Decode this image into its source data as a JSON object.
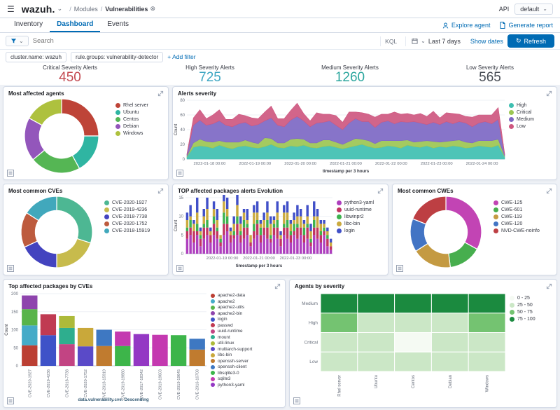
{
  "icons": {
    "hamburger": "☰",
    "caret_down": "⌄",
    "close_circle": "⊗",
    "refresh": "↻",
    "slash": "/"
  },
  "header": {
    "logo": "wazuh.",
    "breadcrumb": {
      "section": "Modules",
      "page": "Vulnerabilities"
    },
    "api_label": "API",
    "api_value": "default",
    "tabs": [
      {
        "label": "Inventory"
      },
      {
        "label": "Dashboard"
      },
      {
        "label": "Events"
      }
    ],
    "actions": {
      "explore_agent": "Explore agent",
      "generate_report": "Generate report"
    }
  },
  "searchbar": {
    "placeholder": "Search",
    "kql": "KQL",
    "time_range": "Last 7 days",
    "show_dates": "Show dates",
    "refresh": "Refresh"
  },
  "filters": {
    "pills": [
      "cluster.name: wazuh",
      "rule.groups: vulnerability-detector"
    ],
    "add_label": "+ Add filter"
  },
  "stats": [
    {
      "label": "Critical Severity Alerts",
      "value": "450",
      "color": "#c34a51"
    },
    {
      "label": "High Severity Alerts",
      "value": "725",
      "color": "#3da6c2"
    },
    {
      "label": "Medium Severity Alerts",
      "value": "1260",
      "color": "#2ca69e"
    },
    {
      "label": "Low Severity Alerts",
      "value": "565",
      "color": "#464b53"
    }
  ],
  "panels": {
    "agents": {
      "title": "Most affected agents"
    },
    "severity": {
      "title": "Alerts severity"
    },
    "cves": {
      "title": "Most common CVEs"
    },
    "evolution": {
      "title": "TOP affected packages alerts Evolution"
    },
    "cwes": {
      "title": "Most common CWEs"
    },
    "packages": {
      "title": "Top affected packages by CVEs"
    },
    "heatmap": {
      "title": "Agents by severity"
    }
  },
  "chart_data": {
    "agents_donut": {
      "type": "pie",
      "labels": [
        "Rhel server",
        "Ubuntu",
        "Centos",
        "Debian",
        "Windows"
      ],
      "values": [
        25,
        17,
        22,
        19,
        17
      ],
      "colors": [
        "#be4438",
        "#2fb5a2",
        "#55b654",
        "#9356bb",
        "#aec13e"
      ]
    },
    "alerts_severity": {
      "type": "area",
      "stacked": true,
      "ylabel": "Count",
      "xlabel": "timestamp per 3 hours",
      "ylim": [
        0,
        80
      ],
      "y_ticks": [
        0,
        20,
        40,
        60,
        80
      ],
      "x_ticks": [
        "2022-01-18 00:00",
        "2022-01-19 00:00",
        "2022-01-20 00:00",
        "2022-01-21 00:00",
        "2022-01-22 00:00",
        "2022-01-23 00:00",
        "2022-01-24 00:00"
      ],
      "series": [
        {
          "name": "High",
          "color": "#3fbfb1",
          "values": [
            3,
            16,
            18,
            17,
            15,
            19,
            16,
            14,
            17,
            18,
            16,
            15,
            17,
            20,
            16,
            15,
            18,
            17,
            19,
            16,
            15,
            17,
            18,
            16,
            14,
            16,
            18,
            20,
            17,
            15,
            16,
            18,
            17,
            15,
            19,
            17,
            16,
            18,
            15,
            17,
            16,
            18,
            17,
            15,
            16,
            18,
            17,
            16,
            19,
            3
          ]
        },
        {
          "name": "Critical",
          "color": "#9cc653",
          "values": [
            1,
            6,
            9,
            7,
            8,
            6,
            7,
            9,
            6,
            8,
            7,
            6,
            12,
            8,
            6,
            7,
            9,
            11,
            8,
            6,
            7,
            9,
            8,
            7,
            6,
            8,
            10,
            7,
            8,
            6,
            9,
            7,
            8,
            10,
            7,
            6,
            8,
            7,
            9,
            6,
            8,
            7,
            9,
            8,
            6,
            7,
            8,
            9,
            8,
            1
          ]
        },
        {
          "name": "Medium",
          "color": "#7d68c4",
          "values": [
            2,
            24,
            26,
            22,
            25,
            27,
            23,
            21,
            25,
            24,
            22,
            26,
            23,
            28,
            24,
            22,
            26,
            30,
            25,
            22,
            27,
            24,
            26,
            23,
            20,
            25,
            27,
            24,
            26,
            22,
            25,
            27,
            23,
            26,
            24,
            28,
            25,
            22,
            26,
            24,
            27,
            23,
            25,
            26,
            22,
            24,
            26,
            23,
            27,
            2
          ]
        },
        {
          "name": "Low",
          "color": "#ce5880",
          "values": [
            1,
            10,
            14,
            9,
            12,
            15,
            8,
            10,
            13,
            9,
            11,
            8,
            12,
            16,
            9,
            11,
            13,
            18,
            10,
            8,
            14,
            11,
            9,
            13,
            10,
            15,
            9,
            12,
            10,
            14,
            11,
            9,
            16,
            10,
            12,
            9,
            13,
            11,
            15,
            9,
            12,
            14,
            10,
            9,
            13,
            11,
            9,
            12,
            16,
            1
          ]
        }
      ]
    },
    "cves_donut": {
      "type": "pie",
      "labels": [
        "CVE-2020-1927",
        "CVE-2019-4236",
        "CVE-2018-7738",
        "CVE-2020-1752",
        "CVE-2018-15919"
      ],
      "values": [
        30,
        20,
        18,
        16,
        16
      ],
      "colors": [
        "#4db793",
        "#c7bb4c",
        "#4343bf",
        "#bd5b3e",
        "#41a8bc"
      ]
    },
    "evolution": {
      "type": "bar",
      "stacked": true,
      "ylabel": "Count",
      "xlabel": "timestamp per 3 hours",
      "ylim": [
        0,
        15
      ],
      "y_ticks": [
        0,
        5,
        10,
        15
      ],
      "x_ticks": [
        "2022-01-19 00:00",
        "2022-01-21 00:00",
        "2022-01-23 00:00"
      ],
      "series": [
        {
          "name": "python3-yaml",
          "color": "#ae3fbe",
          "values": [
            4,
            5,
            3,
            5,
            2,
            4,
            5,
            3,
            5,
            4,
            2,
            5,
            6,
            3,
            4,
            5,
            3,
            4,
            5,
            2,
            4,
            5,
            3,
            5,
            4,
            3,
            5,
            4,
            2,
            5,
            4,
            3,
            5,
            4,
            5,
            3,
            4,
            2,
            5,
            4,
            3,
            5,
            2,
            1
          ]
        },
        {
          "name": "uuid-runtime",
          "color": "#c23562",
          "values": [
            2,
            2,
            3,
            1,
            2,
            3,
            2,
            2,
            3,
            2,
            1,
            3,
            2,
            2,
            1,
            3,
            2,
            3,
            2,
            1,
            2,
            3,
            2,
            2,
            3,
            1,
            2,
            3,
            2,
            2,
            3,
            2,
            1,
            3,
            2,
            2,
            3,
            1,
            2,
            3,
            2,
            1,
            2,
            1
          ]
        },
        {
          "name": "libwinpr2",
          "color": "#3db34e",
          "values": [
            1,
            2,
            0,
            2,
            1,
            1,
            2,
            0,
            2,
            1,
            1,
            3,
            2,
            0,
            1,
            2,
            1,
            2,
            1,
            0,
            2,
            1,
            2,
            0,
            2,
            1,
            1,
            2,
            0,
            1,
            2,
            1,
            2,
            1,
            0,
            2,
            1,
            1,
            2,
            0,
            1,
            1,
            1,
            0
          ]
        },
        {
          "name": "libc-bin",
          "color": "#cbaa3f",
          "values": [
            2,
            1,
            2,
            3,
            1,
            2,
            3,
            1,
            2,
            2,
            1,
            3,
            2,
            1,
            2,
            3,
            2,
            2,
            1,
            2,
            3,
            2,
            1,
            2,
            2,
            3,
            1,
            2,
            1,
            3,
            2,
            2,
            1,
            2,
            3,
            1,
            2,
            2,
            1,
            3,
            2,
            1,
            1,
            1
          ]
        },
        {
          "name": "login",
          "color": "#4150c8",
          "values": [
            2,
            3,
            1,
            4,
            1,
            2,
            3,
            1,
            2,
            3,
            0,
            2,
            3,
            1,
            2,
            3,
            2,
            1,
            3,
            0,
            2,
            3,
            1,
            2,
            3,
            2,
            1,
            3,
            1,
            2,
            3,
            1,
            2,
            3,
            2,
            1,
            3,
            2,
            4,
            2,
            1,
            1,
            1,
            1
          ]
        }
      ]
    },
    "cwes_donut": {
      "type": "pie",
      "labels": [
        "CWE-125",
        "CWE-601",
        "CWE-119",
        "CWE-120",
        "NVD-CWE-noinfo"
      ],
      "values": [
        33,
        15,
        18,
        15,
        19
      ],
      "colors": [
        "#c244b4",
        "#47ae4e",
        "#c49a42",
        "#4274c4",
        "#bd3f43"
      ]
    },
    "packages_by_cve": {
      "type": "bar",
      "stacked": true,
      "ylabel": "Count",
      "xlabel": "data.vulnerability.cve: Descending",
      "ylim": [
        0,
        200
      ],
      "y_ticks": [
        0,
        50,
        100,
        150,
        200
      ],
      "legend": [
        {
          "name": "apache2-data",
          "color": "#bb3f33"
        },
        {
          "name": "apache2",
          "color": "#45abc8"
        },
        {
          "name": "apache2-utils",
          "color": "#58b44a"
        },
        {
          "name": "apache2-bin",
          "color": "#8e44ad"
        },
        {
          "name": "login",
          "color": "#3e52c8"
        },
        {
          "name": "passwd",
          "color": "#c03a52"
        },
        {
          "name": "uuid-runtime",
          "color": "#c24483"
        },
        {
          "name": "mount",
          "color": "#2eae8e"
        },
        {
          "name": "util-linux",
          "color": "#adba3a"
        },
        {
          "name": "multiarch-support",
          "color": "#5a4ac8"
        },
        {
          "name": "libc-bin",
          "color": "#c9a83a"
        },
        {
          "name": "openssh-server",
          "color": "#c07b2f"
        },
        {
          "name": "openssh-client",
          "color": "#3e78c2"
        },
        {
          "name": "libsqlite3-0",
          "color": "#3db54a"
        },
        {
          "name": "sqlite3",
          "color": "#c439b0"
        },
        {
          "name": "python3-yaml",
          "color": "#9438c4"
        }
      ],
      "bars": [
        {
          "cve": "CVE-2020-1927",
          "segments": [
            [
              "apache2-data",
              57
            ],
            [
              "apache2",
              55
            ],
            [
              "apache2-utils",
              45
            ],
            [
              "apache2-bin",
              38
            ]
          ]
        },
        {
          "cve": "CVE-2019-4236",
          "segments": [
            [
              "login",
              85
            ],
            [
              "passwd",
              58
            ]
          ]
        },
        {
          "cve": "CVE-2018-7738",
          "segments": [
            [
              "uuid-runtime",
              60
            ],
            [
              "mount",
              45
            ],
            [
              "util-linux",
              33
            ]
          ]
        },
        {
          "cve": "CVE-2020-1752",
          "segments": [
            [
              "multiarch-support",
              54
            ],
            [
              "libc-bin",
              51
            ]
          ]
        },
        {
          "cve": "CVE-2018-15919",
          "segments": [
            [
              "openssh-server",
              55
            ],
            [
              "openssh-client",
              45
            ]
          ]
        },
        {
          "cve": "CVE-2019-19880",
          "segments": [
            [
              "libsqlite3-0",
              55
            ],
            [
              "sqlite3",
              40
            ]
          ]
        },
        {
          "cve": "CVE-2017-18342",
          "segments": [
            [
              "python3-yaml",
              88
            ]
          ]
        },
        {
          "cve": "CVE-2019-19603",
          "segments": [
            [
              "sqlite3",
              86
            ]
          ]
        },
        {
          "cve": "CVE-2019-19645",
          "segments": [
            [
              "libsqlite3-0",
              85
            ]
          ]
        },
        {
          "cve": "CVE-2016-10708",
          "segments": [
            [
              "openssh-server",
              45
            ],
            [
              "openssh-client",
              30
            ]
          ]
        }
      ]
    },
    "agents_by_severity": {
      "type": "heatmap",
      "rows": [
        "Medium",
        "High",
        "Critical",
        "Low"
      ],
      "cols": [
        "Rhel server",
        "Ubuntu",
        "Centos",
        "Debian",
        "Windows"
      ],
      "values": [
        [
          88,
          86,
          90,
          87,
          85
        ],
        [
          62,
          38,
          34,
          40,
          58
        ],
        [
          32,
          36,
          12,
          34,
          30
        ],
        [
          30,
          28,
          32,
          30,
          28
        ]
      ],
      "buckets": [
        {
          "label": "0 - 25",
          "color": "#f5faf3",
          "max": 25
        },
        {
          "label": "25 - 50",
          "color": "#cbe7c6",
          "max": 50
        },
        {
          "label": "50 - 75",
          "color": "#74c371",
          "max": 75
        },
        {
          "label": "75 - 100",
          "color": "#1b8a3f",
          "max": 100
        }
      ]
    }
  }
}
